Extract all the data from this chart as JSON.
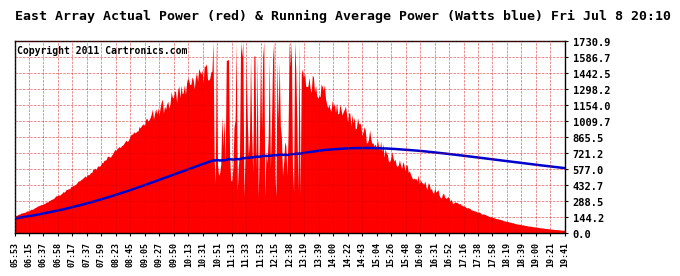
{
  "title": "East Array Actual Power (red) & Running Average Power (Watts blue) Fri Jul 8 20:10",
  "copyright": "Copyright 2011 Cartronics.com",
  "ytick_labels": [
    "0.0",
    "144.2",
    "288.5",
    "432.7",
    "577.0",
    "721.2",
    "865.5",
    "1009.7",
    "1154.0",
    "1298.2",
    "1442.5",
    "1586.7",
    "1730.9"
  ],
  "ytick_values": [
    0.0,
    144.2,
    288.5,
    432.7,
    577.0,
    721.2,
    865.5,
    1009.7,
    1154.0,
    1298.2,
    1442.5,
    1586.7,
    1730.9
  ],
  "xtick_labels": [
    "05:53",
    "06:15",
    "06:37",
    "06:58",
    "07:17",
    "07:37",
    "07:59",
    "08:23",
    "08:45",
    "09:05",
    "09:27",
    "09:50",
    "10:13",
    "10:31",
    "10:51",
    "11:13",
    "11:33",
    "11:53",
    "12:15",
    "12:38",
    "13:19",
    "13:39",
    "14:00",
    "14:22",
    "14:43",
    "15:04",
    "15:26",
    "15:48",
    "16:09",
    "16:31",
    "16:52",
    "17:16",
    "17:38",
    "17:58",
    "18:19",
    "18:39",
    "19:00",
    "19:21",
    "19:41"
  ],
  "ymax": 1730.9,
  "background_color": "#ffffff",
  "fill_color": "#ff0000",
  "avg_line_color": "#0000cc",
  "grid_color": "#cc0000",
  "title_fontsize": 9.5,
  "copyright_fontsize": 7
}
